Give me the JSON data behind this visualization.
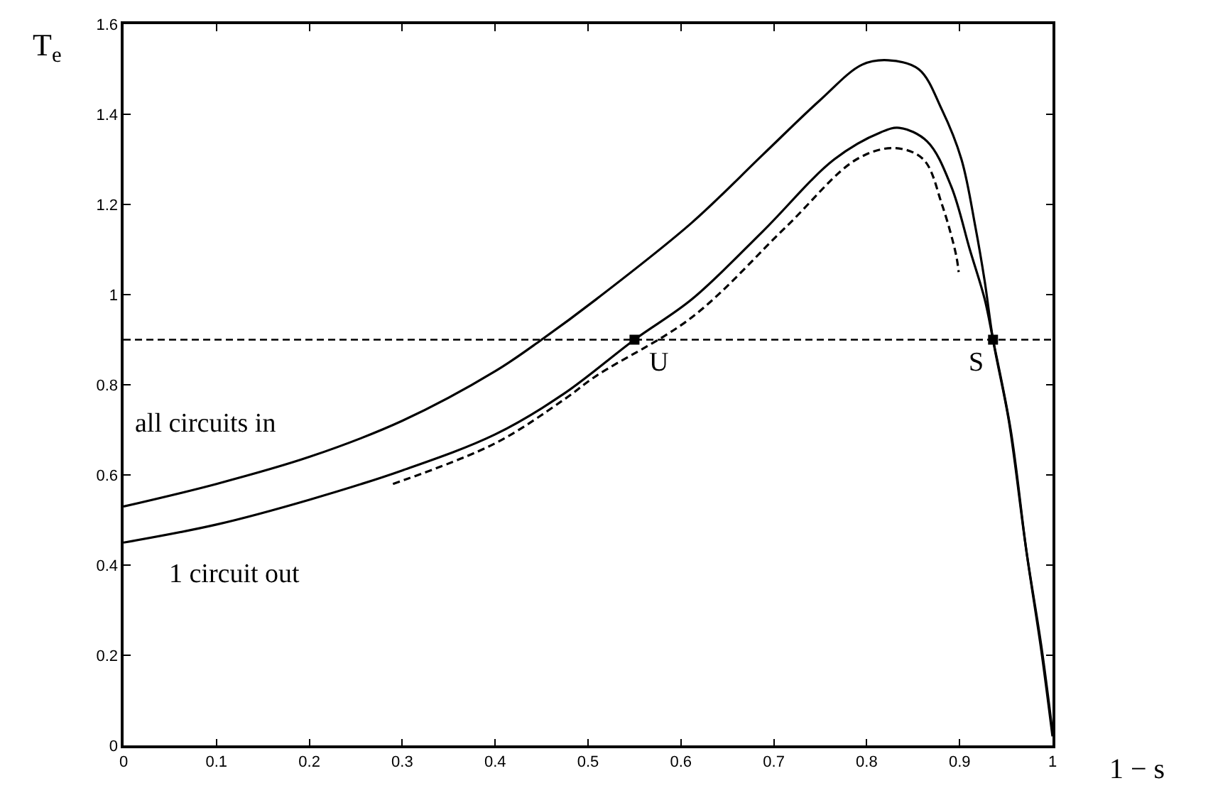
{
  "chart_data": {
    "type": "line",
    "xlabel": "1 − s",
    "ylabel": "T$_{e}$",
    "xlim": [
      0,
      1
    ],
    "ylim": [
      0,
      1.6
    ],
    "xticks": [
      0,
      0.1,
      0.2,
      0.3,
      0.4,
      0.5,
      0.6,
      0.7,
      0.8,
      0.9,
      1
    ],
    "yticks": [
      0,
      0.2,
      0.4,
      0.6,
      0.8,
      1,
      1.2,
      1.4,
      1.6
    ],
    "legend": false,
    "marker": "none",
    "series": [
      {
        "name": "all circuits in",
        "color": "#000000",
        "line_style": "solid",
        "x": [
          0,
          0.1,
          0.2,
          0.3,
          0.4,
          0.45,
          0.509,
          0.612,
          0.688,
          0.749,
          0.795,
          0.823,
          0.856,
          0.881,
          0.902,
          0.917,
          0.927,
          0.936,
          0.953,
          0.972,
          0.988,
          1.0
        ],
        "values": [
          0.53,
          0.58,
          0.64,
          0.72,
          0.83,
          0.9,
          0.99,
          1.16,
          1.31,
          1.43,
          1.51,
          1.52,
          1.5,
          1.41,
          1.3,
          1.15,
          1.03,
          0.9,
          0.72,
          0.43,
          0.22,
          0.03
        ]
      },
      {
        "name": "1 circuit out",
        "color": "#000000",
        "line_style": "solid",
        "x": [
          0,
          0.1,
          0.2,
          0.3,
          0.4,
          0.474,
          0.55,
          0.612,
          0.688,
          0.765,
          0.815,
          0.835,
          0.865,
          0.891,
          0.911,
          0.927,
          0.936,
          0.955,
          0.972,
          0.988,
          1.0
        ],
        "values": [
          0.45,
          0.49,
          0.545,
          0.61,
          0.69,
          0.78,
          0.9,
          0.99,
          1.14,
          1.3,
          1.36,
          1.37,
          1.34,
          1.24,
          1.1,
          0.99,
          0.9,
          0.7,
          0.43,
          0.21,
          0.02
        ]
      },
      {
        "color": "#000000",
        "line_style": "dashed",
        "x": [
          0.29,
          0.4,
          0.474,
          0.509,
          0.612,
          0.713,
          0.789,
          0.83,
          0.861,
          0.881,
          0.896,
          0.899
        ],
        "values": [
          0.58,
          0.67,
          0.767,
          0.82,
          0.95,
          1.15,
          1.3,
          1.325,
          1.3,
          1.2,
          1.09,
          1.05
        ]
      },
      {
        "type": "scatter",
        "marker": "square",
        "color": "#000000",
        "x": [
          0.55,
          0.936
        ],
        "values": [
          0.9,
          0.9
        ]
      }
    ],
    "ref_lines": [
      {
        "axis": "y",
        "value": 0.9,
        "color": "#000000",
        "line_style": "dashed"
      }
    ],
    "annotations": [
      {
        "text": "U",
        "x": 0.55,
        "y": 0.9
      },
      {
        "text": "S",
        "x": 0.936,
        "y": 0.9
      }
    ]
  }
}
